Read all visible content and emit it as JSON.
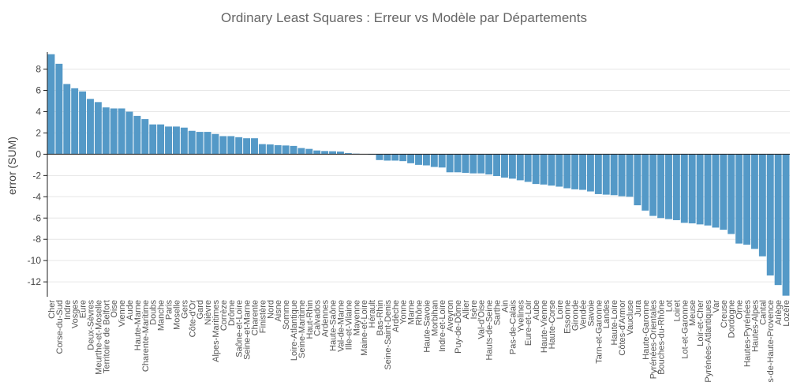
{
  "chart_data": {
    "type": "bar",
    "title": "Ordinary Least Squares : Erreur vs Modèle par Départements",
    "xlabel": "",
    "ylabel": "error (SUM)",
    "ylim": [
      -13.4,
      9.6
    ],
    "yticks": [
      -12,
      -10,
      -8,
      -6,
      -4,
      -2,
      0,
      2,
      4,
      6,
      8
    ],
    "grid": true,
    "categories": [
      "Cher",
      "Corse-du-Sud",
      "Indre",
      "Vosges",
      "Eure",
      "Deux-Sèvres",
      "Meurthe-et-Moselle",
      "Territoire de Belfort",
      "Oise",
      "Vienne",
      "Aude",
      "Haute-Marne",
      "Charente-Maritime",
      "Doubs",
      "Manche",
      "Paris",
      "Moselle",
      "Gers",
      "Côte-d'Or",
      "Gard",
      "Nièvre",
      "Alpes-Maritimes",
      "Corrèze",
      "Drôme",
      "Saône-et-Loire",
      "Seine-et-Marne",
      "Charente",
      "Finistère",
      "Nord",
      "Aisne",
      "Somme",
      "Loire-Atlantique",
      "Seine-Maritime",
      "Haut-Rhin",
      "Calvados",
      "Ardennes",
      "Haute-Saône",
      "Val-de-Marne",
      "Ille-et-Vilaine",
      "Mayenne",
      "Maine-et-Loire",
      "Hérault",
      "Bas-Rhin",
      "Seine-Saint-Denis",
      "Ardèche",
      "Yonne",
      "Marne",
      "Rhône",
      "Haute-Savoie",
      "Morbihan",
      "Indre-et-Loire",
      "Aveyron",
      "Puy-de-Dôme",
      "Allier",
      "Isère",
      "Val-d'Oise",
      "Hauts-de-Seine",
      "Sarthe",
      "Ain",
      "Pas-de-Calais",
      "Yvelines",
      "Eure-et-Loir",
      "Aube",
      "Haute-Vienne",
      "Haute-Corse",
      "Loire",
      "Essonne",
      "Gironde",
      "Vendée",
      "Savoie",
      "Tarn-et-Garonne",
      "Landes",
      "Haute-Loire",
      "Côtes-d'Armor",
      "Vaucluse",
      "Jura",
      "Haute-Garonne",
      "Pyrénées-Orientales",
      "Bouches-du-Rhône",
      "Lot",
      "Loiret",
      "Lot-et-Garonne",
      "Meuse",
      "Loir-et-Cher",
      "Pyrénées-Atlantiques",
      "Var",
      "Creuse",
      "Dordogne",
      "Orne",
      "Hautes-Pyrénées",
      "Hautes-Alpes",
      "Cantal",
      "Alpes-de-Haute-Provence",
      "Ariège",
      "Lozère"
    ],
    "values": [
      9.4,
      8.5,
      6.6,
      6.2,
      5.9,
      5.2,
      4.9,
      4.4,
      4.3,
      4.3,
      4.0,
      3.6,
      3.3,
      2.8,
      2.8,
      2.6,
      2.6,
      2.5,
      2.2,
      2.1,
      2.1,
      1.9,
      1.7,
      1.7,
      1.6,
      1.5,
      1.5,
      0.95,
      0.92,
      0.85,
      0.82,
      0.78,
      0.58,
      0.5,
      0.35,
      0.3,
      0.28,
      0.25,
      0.1,
      0.05,
      0.02,
      -0.05,
      -0.55,
      -0.6,
      -0.6,
      -0.65,
      -0.85,
      -1.0,
      -1.05,
      -1.2,
      -1.25,
      -1.7,
      -1.7,
      -1.75,
      -1.8,
      -1.8,
      -1.9,
      -2.05,
      -2.2,
      -2.3,
      -2.45,
      -2.6,
      -2.8,
      -2.85,
      -2.95,
      -3.05,
      -3.2,
      -3.3,
      -3.35,
      -3.5,
      -3.75,
      -3.8,
      -3.85,
      -3.95,
      -4.0,
      -4.8,
      -5.3,
      -5.8,
      -6.0,
      -6.1,
      -6.2,
      -6.45,
      -6.5,
      -6.6,
      -6.7,
      -6.9,
      -7.1,
      -7.5,
      -8.4,
      -8.5,
      -8.9,
      -9.6,
      -11.4,
      -12.3,
      -13.3
    ]
  }
}
